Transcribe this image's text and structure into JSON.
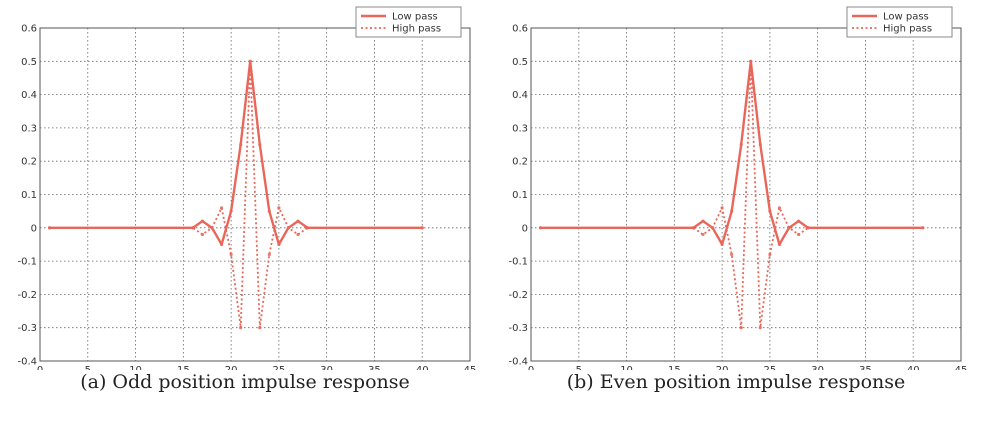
{
  "chart_data": [
    {
      "type": "line",
      "caption": "(a) Odd position impulse response",
      "xlim": [
        0,
        45
      ],
      "ylim": [
        -0.4,
        0.6
      ],
      "xticks": [
        0,
        5,
        10,
        15,
        20,
        25,
        30,
        35,
        40,
        45
      ],
      "yticks": [
        -0.4,
        -0.3,
        -0.2,
        -0.1,
        0,
        0.1,
        0.2,
        0.3,
        0.4,
        0.5,
        0.6
      ],
      "xtick_labels": [
        "0",
        "5",
        "10",
        "15",
        "20",
        "25",
        "30",
        "35",
        "40",
        "45"
      ],
      "ytick_labels": [
        "-0.4",
        "-0.3",
        "-0.2",
        "-0.1",
        "0",
        "0.1",
        "0.2",
        "0.3",
        "0.4",
        "0.5",
        "0.6"
      ],
      "grid": true,
      "legend_position": "top-right",
      "series": [
        {
          "name": "Low pass",
          "style": "solid",
          "color": "#e8675a",
          "x": [
            1,
            16,
            17,
            18,
            19,
            20,
            21,
            22,
            23,
            24,
            25,
            26,
            27,
            28,
            40
          ],
          "y": [
            0,
            0,
            0.02,
            0,
            -0.05,
            0.05,
            0.25,
            0.5,
            0.25,
            0.05,
            -0.05,
            0,
            0.02,
            0,
            0
          ]
        },
        {
          "name": "High pass",
          "style": "dotted",
          "color": "#e8675a",
          "x": [
            1,
            16,
            17,
            18,
            19,
            20,
            21,
            22,
            23,
            24,
            25,
            26,
            27,
            28,
            40
          ],
          "y": [
            0,
            0,
            -0.02,
            0,
            0.06,
            -0.08,
            -0.3,
            0.5,
            -0.3,
            -0.08,
            0.06,
            0,
            -0.02,
            0,
            0
          ]
        }
      ]
    },
    {
      "type": "line",
      "caption": "(b) Even position impulse response",
      "xlim": [
        0,
        45
      ],
      "ylim": [
        -0.4,
        0.6
      ],
      "xticks": [
        0,
        5,
        10,
        15,
        20,
        25,
        30,
        35,
        40,
        45
      ],
      "yticks": [
        -0.4,
        -0.3,
        -0.2,
        -0.1,
        0,
        0.1,
        0.2,
        0.3,
        0.4,
        0.5,
        0.6
      ],
      "xtick_labels": [
        "0",
        "5",
        "10",
        "15",
        "20",
        "25",
        "30",
        "35",
        "40",
        "45"
      ],
      "ytick_labels": [
        "-0.4",
        "-0.3",
        "-0.2",
        "-0.1",
        "0",
        "0.1",
        "0.2",
        "0.3",
        "0.4",
        "0.5",
        "0.6"
      ],
      "grid": true,
      "legend_position": "top-right",
      "series": [
        {
          "name": "Low pass",
          "style": "solid",
          "color": "#e8675a",
          "x": [
            1,
            17,
            18,
            19,
            20,
            21,
            22,
            23,
            24,
            25,
            26,
            27,
            28,
            29,
            41
          ],
          "y": [
            0,
            0,
            0.02,
            0,
            -0.05,
            0.05,
            0.25,
            0.5,
            0.25,
            0.05,
            -0.05,
            0,
            0.02,
            0,
            0
          ]
        },
        {
          "name": "High pass",
          "style": "dotted",
          "color": "#e8675a",
          "x": [
            1,
            17,
            18,
            19,
            20,
            21,
            22,
            23,
            24,
            25,
            26,
            27,
            28,
            29,
            41
          ],
          "y": [
            0,
            0,
            -0.02,
            0,
            0.06,
            -0.08,
            -0.3,
            0.5,
            -0.3,
            -0.08,
            0.06,
            0,
            -0.02,
            0,
            0
          ]
        }
      ]
    }
  ]
}
